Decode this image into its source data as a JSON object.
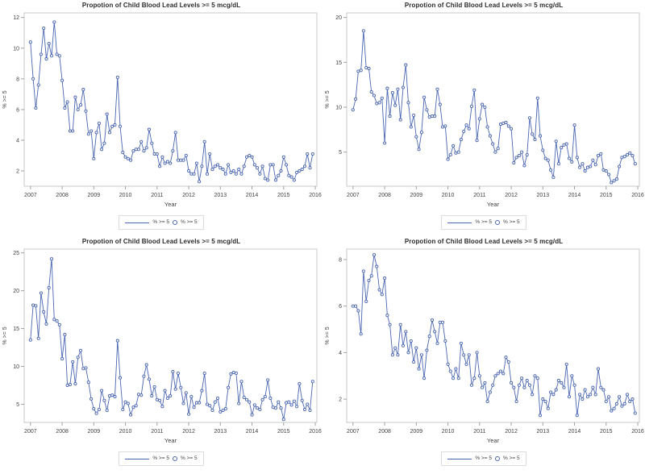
{
  "page": {
    "background": "#ffffff"
  },
  "colors": {
    "series": "#4a66b2",
    "marker_fill": "#ffffff",
    "frame": "#c9c9c9",
    "tick": "#a0a0a0",
    "tick_label": "#3f3f3f",
    "axis_label": "#3f3f3f",
    "title": "#2b2b2b",
    "legend_border": "#dcdcdc"
  },
  "chart_data": [
    {
      "type": "line",
      "title": "Propotion of Child Blood Lead Levels >= 5 mcg/dL",
      "xlabel": "Year",
      "ylabel": "% >= 5",
      "legend": [
        "% >= 5",
        "% >= 5"
      ],
      "legend_position": "bottom",
      "grid": false,
      "x_start": 2007,
      "points_per_year": 12,
      "xlim": [
        2006.8,
        2016.05
      ],
      "ylim": [
        1.0,
        12.3
      ],
      "xticks": [
        2007,
        2008,
        2009,
        2010,
        2011,
        2012,
        2013,
        2014,
        2015,
        2016
      ],
      "yticks": [
        2,
        4,
        6,
        8,
        10,
        12
      ],
      "values": [
        10.4,
        8.0,
        6.1,
        7.6,
        9.6,
        11.3,
        9.3,
        10.3,
        9.5,
        11.7,
        9.6,
        9.5,
        7.9,
        6.1,
        6.5,
        4.6,
        4.6,
        6.8,
        6.0,
        6.3,
        7.3,
        5.9,
        4.4,
        4.6,
        2.8,
        4.5,
        5.1,
        3.4,
        3.8,
        5.7,
        4.5,
        4.9,
        5.0,
        8.1,
        4.9,
        3.2,
        2.9,
        2.8,
        2.7,
        3.3,
        3.4,
        3.4,
        3.9,
        3.3,
        3.5,
        4.7,
        3.8,
        3.1,
        3.1,
        2.3,
        2.9,
        2.5,
        2.6,
        2.5,
        3.3,
        4.5,
        2.7,
        2.7,
        2.7,
        3.0,
        2.0,
        1.8,
        1.8,
        2.5,
        1.3,
        2.3,
        3.9,
        1.8,
        3.1,
        2.1,
        2.3,
        2.4,
        2.2,
        2.1,
        1.8,
        2.4,
        1.9,
        2.0,
        1.8,
        2.1,
        1.8,
        2.3,
        2.9,
        3.0,
        2.9,
        2.4,
        2.2,
        1.8,
        2.3,
        1.5,
        1.4,
        2.4,
        2.4,
        1.4,
        1.7,
        2.0,
        2.9,
        2.4,
        1.7,
        1.6,
        1.4,
        1.9,
        2.0,
        2.1,
        2.3,
        3.1,
        2.2,
        3.1
      ]
    },
    {
      "type": "line",
      "title": "Propotion of Child Blood Lead Levels >= 5 mcg/dL",
      "xlabel": "Year",
      "ylabel": "% >= 5",
      "legend": [
        "% >= 5",
        "% >= 5"
      ],
      "legend_position": "bottom",
      "grid": false,
      "x_start": 2007,
      "points_per_year": 12,
      "xlim": [
        2006.8,
        2016.05
      ],
      "ylim": [
        1.2,
        20.5
      ],
      "xticks": [
        2007,
        2008,
        2009,
        2010,
        2011,
        2012,
        2013,
        2014,
        2015,
        2016
      ],
      "yticks": [
        5,
        10,
        15,
        20
      ],
      "values": [
        9.7,
        10.9,
        14.0,
        14.1,
        18.5,
        14.4,
        14.3,
        11.7,
        11.3,
        10.4,
        10.5,
        11.0,
        6.0,
        12.1,
        9.0,
        11.6,
        10.2,
        12.0,
        8.6,
        12.2,
        14.7,
        10.5,
        7.8,
        9.1,
        6.7,
        5.3,
        7.2,
        11.1,
        9.7,
        8.9,
        9.0,
        9.0,
        12.0,
        10.3,
        7.8,
        7.9,
        4.2,
        4.7,
        5.7,
        4.9,
        5.0,
        6.4,
        7.3,
        8.0,
        7.6,
        10.1,
        11.9,
        6.3,
        8.7,
        10.3,
        10.0,
        7.8,
        6.8,
        5.9,
        5.0,
        5.4,
        8.1,
        8.2,
        8.3,
        7.9,
        7.6,
        3.8,
        4.4,
        4.6,
        5.0,
        3.5,
        4.7,
        8.8,
        7.0,
        6.4,
        11.0,
        6.8,
        5.2,
        4.3,
        4.1,
        3.0,
        2.2,
        6.2,
        3.7,
        5.5,
        5.8,
        5.9,
        4.3,
        3.9,
        8.0,
        4.4,
        3.3,
        3.7,
        2.9,
        3.3,
        3.4,
        4.1,
        3.6,
        4.6,
        4.8,
        3.0,
        2.9,
        2.5,
        1.6,
        1.8,
        2.0,
        3.4,
        4.4,
        4.5,
        4.7,
        4.9,
        4.6,
        3.7
      ]
    },
    {
      "type": "line",
      "title": "Propotion of Child Blood Lead Levels >= 5 mcg/dL",
      "xlabel": "Year",
      "ylabel": "% >= 5",
      "legend": [
        "% >= 5",
        "% >= 5"
      ],
      "legend_position": "bottom",
      "grid": false,
      "x_start": 2007,
      "points_per_year": 12,
      "xlim": [
        2006.8,
        2016.05
      ],
      "ylim": [
        2.6,
        25.5
      ],
      "xticks": [
        2007,
        2008,
        2009,
        2010,
        2011,
        2012,
        2013,
        2014,
        2015,
        2016
      ],
      "yticks": [
        5,
        10,
        15,
        20,
        25
      ],
      "values": [
        13.5,
        18.1,
        18.0,
        13.7,
        19.7,
        17.2,
        15.6,
        20.4,
        24.2,
        16.2,
        16.0,
        15.5,
        11.0,
        14.2,
        7.5,
        7.6,
        10.6,
        7.7,
        11.2,
        12.1,
        9.7,
        9.8,
        7.9,
        5.7,
        4.4,
        3.8,
        4.3,
        6.8,
        5.5,
        4.2,
        6.1,
        6.2,
        6.0,
        13.4,
        8.5,
        4.3,
        5.3,
        5.1,
        3.6,
        4.6,
        4.8,
        6.3,
        6.2,
        8.7,
        10.2,
        8.3,
        6.1,
        7.3,
        5.6,
        5.5,
        4.7,
        6.8,
        5.8,
        6.1,
        9.3,
        7.0,
        9.1,
        7.2,
        5.1,
        6.5,
        3.7,
        6.0,
        4.6,
        5.2,
        5.2,
        6.8,
        9.1,
        5.0,
        4.8,
        4.2,
        5.3,
        5.8,
        4.0,
        4.2,
        4.4,
        7.2,
        9.0,
        9.2,
        9.1,
        5.1,
        8.0,
        5.9,
        5.6,
        5.3,
        3.6,
        4.9,
        4.5,
        4.3,
        5.6,
        6.0,
        8.2,
        5.8,
        4.6,
        4.5,
        5.3,
        4.5,
        3.0,
        5.2,
        5.3,
        4.9,
        5.4,
        4.7,
        7.7,
        5.5,
        4.3,
        5.0,
        4.2,
        8.0
      ]
    },
    {
      "type": "line",
      "title": "Propotion of Child Blood Lead Levels >= 5 mcg/dL",
      "xlabel": "Year",
      "ylabel": "% >= 5",
      "legend": [
        "% >= 5",
        "% >= 5"
      ],
      "legend_position": "bottom",
      "grid": false,
      "x_start": 2007,
      "points_per_year": 12,
      "xlim": [
        2006.8,
        2016.05
      ],
      "ylim": [
        1.0,
        8.45
      ],
      "xticks": [
        2007,
        2008,
        2009,
        2010,
        2011,
        2012,
        2013,
        2014,
        2015,
        2016
      ],
      "yticks": [
        2,
        4,
        6,
        8
      ],
      "values": [
        6.0,
        6.0,
        5.8,
        4.8,
        7.5,
        6.2,
        7.1,
        7.3,
        8.2,
        7.7,
        6.7,
        6.5,
        7.2,
        5.6,
        5.2,
        3.9,
        4.2,
        3.9,
        5.2,
        4.3,
        4.9,
        4.0,
        4.5,
        3.6,
        4.2,
        3.3,
        3.9,
        2.9,
        4.1,
        4.7,
        5.4,
        4.9,
        4.4,
        5.3,
        5.3,
        4.5,
        3.5,
        3.2,
        2.9,
        3.3,
        2.9,
        4.4,
        3.9,
        3.5,
        3.9,
        2.6,
        2.9,
        4.0,
        3.0,
        2.5,
        2.7,
        1.9,
        2.3,
        2.6,
        3.0,
        3.1,
        3.2,
        3.1,
        3.8,
        3.6,
        2.7,
        2.5,
        1.9,
        2.6,
        2.9,
        2.5,
        2.8,
        2.6,
        2.2,
        3.0,
        2.9,
        1.3,
        2.0,
        1.9,
        1.6,
        2.3,
        2.2,
        2.4,
        2.8,
        2.7,
        2.5,
        3.5,
        2.1,
        3.0,
        2.6,
        1.3,
        2.2,
        2.0,
        2.4,
        2.1,
        2.2,
        2.5,
        2.2,
        3.3,
        2.5,
        2.4,
        1.9,
        2.1,
        1.5,
        1.6,
        1.8,
        2.1,
        1.7,
        1.8,
        2.2,
        1.9,
        2.0,
        1.4
      ]
    }
  ]
}
